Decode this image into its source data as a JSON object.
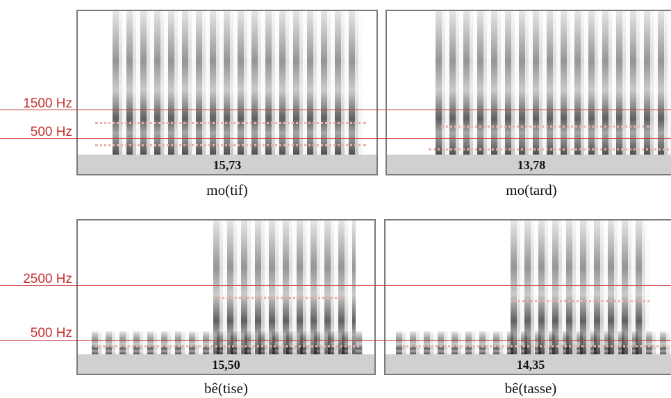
{
  "top_row": {
    "lines": [
      "1500 Hz",
      "500 Hz"
    ],
    "panels": [
      {
        "value": "15,73",
        "caption": "mo(tif)"
      },
      {
        "value": "13,78",
        "caption": "mo(tard)"
      }
    ]
  },
  "bottom_row": {
    "lines": [
      "2500 Hz",
      "500 Hz"
    ],
    "panels": [
      {
        "value": "15,50",
        "caption": "bê(tise)"
      },
      {
        "value": "14,35",
        "caption": "bê(tasse)"
      }
    ]
  }
}
